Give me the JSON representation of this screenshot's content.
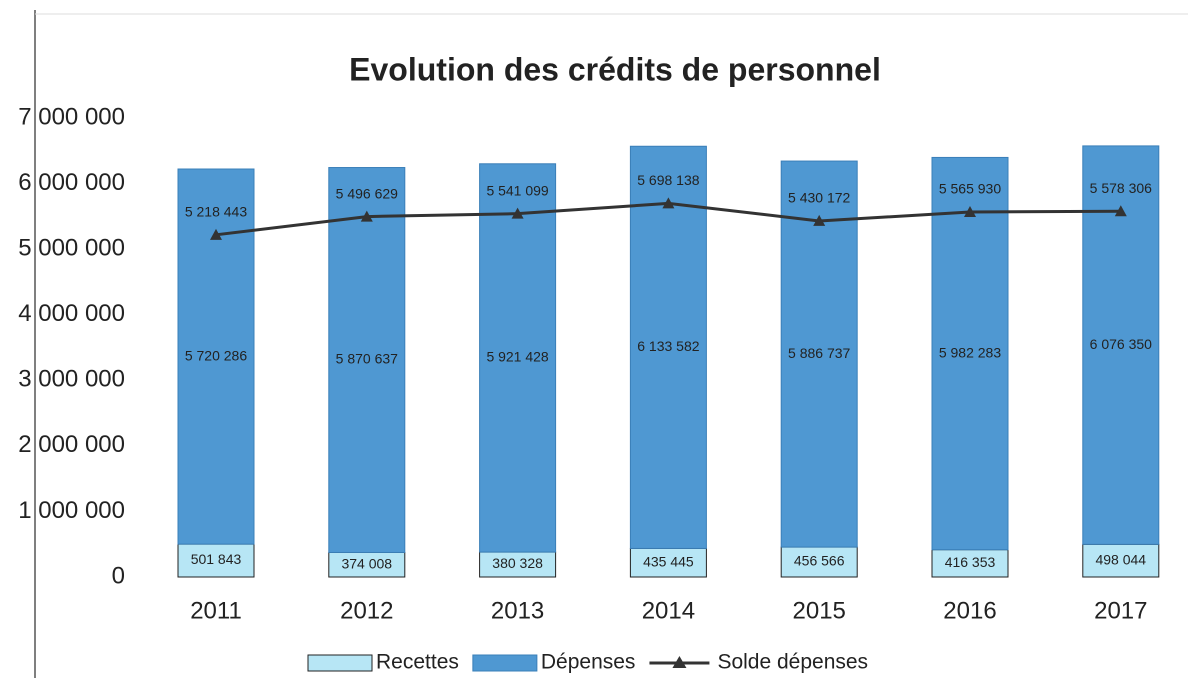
{
  "chart_data": {
    "type": "bar",
    "stacked": true,
    "title": "Evolution des crédits de personnel",
    "categories": [
      "2011",
      "2012",
      "2013",
      "2014",
      "2015",
      "2016",
      "2017"
    ],
    "series": [
      {
        "name": "Recettes",
        "type": "bar",
        "color": "#b7e6f5",
        "values": [
          501843,
          374008,
          380328,
          435445,
          456566,
          416353,
          498044
        ],
        "value_labels": [
          "501 843",
          "374 008",
          "380 328",
          "435 445",
          "456 566",
          "416 353",
          "498 044"
        ]
      },
      {
        "name": "Dépenses",
        "type": "bar",
        "color": "#4f98d2",
        "values": [
          5720286,
          5870637,
          5921428,
          6133582,
          5886737,
          5982283,
          6076350
        ],
        "value_labels": [
          "5 720 286",
          "5 870 637",
          "5 921 428",
          "6 133 582",
          "5 886 737",
          "5 982 283",
          "6 076 350"
        ]
      },
      {
        "name": "Solde dépenses",
        "type": "line",
        "color": "#333333",
        "values": [
          5218443,
          5496629,
          5541099,
          5698138,
          5430172,
          5565930,
          5578306
        ],
        "value_labels": [
          "5 218 443",
          "5 496 629",
          "5 541 099",
          "5 698 138",
          "5 430 172",
          "5 565 930",
          "5 578 306"
        ]
      }
    ],
    "ylim": [
      0,
      7000000
    ],
    "yticks": [
      {
        "value": 0,
        "label": "0"
      },
      {
        "value": 1000000,
        "label": "1 000 000"
      },
      {
        "value": 2000000,
        "label": "2 000 000"
      },
      {
        "value": 3000000,
        "label": "3 000 000"
      },
      {
        "value": 4000000,
        "label": "4 000 000"
      },
      {
        "value": 5000000,
        "label": "5 000 000"
      },
      {
        "value": 6000000,
        "label": "6 000 000"
      },
      {
        "value": 7000000,
        "label": "7 000 000"
      }
    ],
    "grid": false,
    "legend": "bottom"
  }
}
